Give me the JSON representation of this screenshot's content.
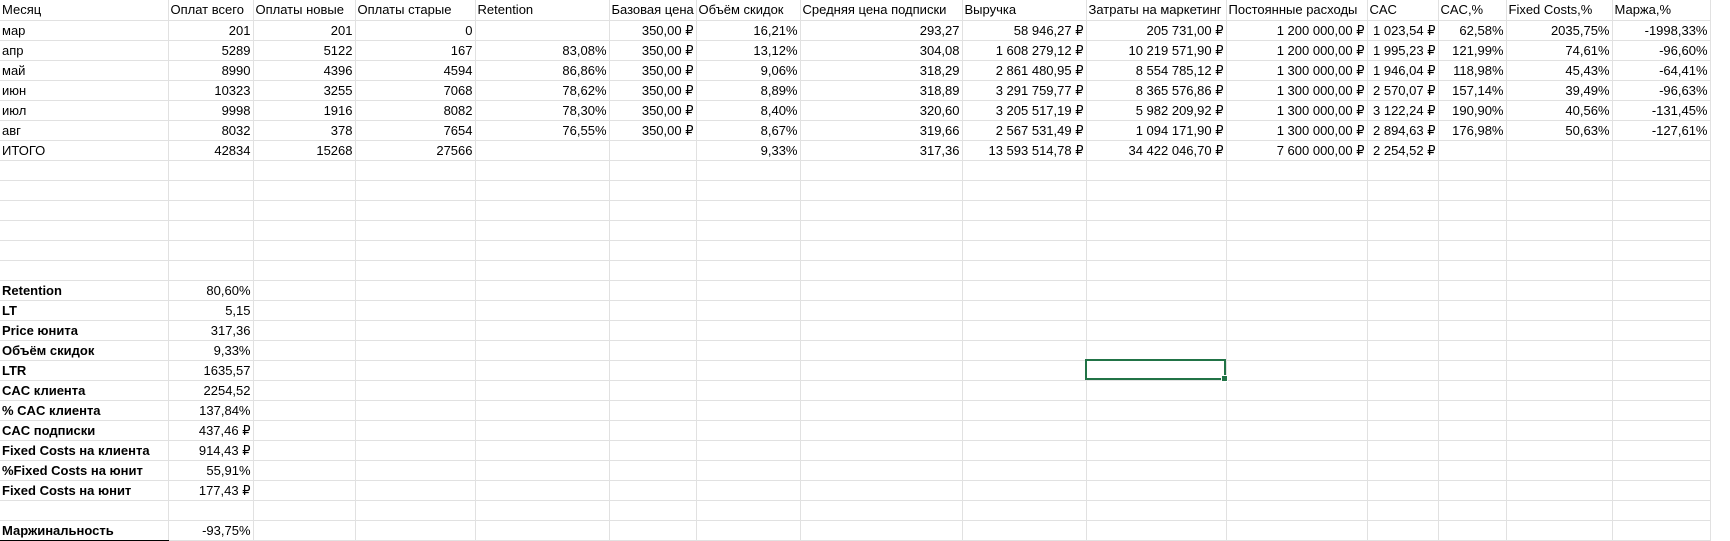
{
  "sheet": {
    "headers": [
      "Месяц",
      "Оплат всего",
      "Оплаты новые",
      "Оплаты  старые",
      "Retention",
      "Базовая цена",
      "Объём скидок",
      "Средняя цена подписки",
      "Выручка",
      "Затраты на маркетинг",
      "Постоянные расходы",
      "CAC",
      "CAC,%",
      "Fixed Costs,%",
      "Маржа,%"
    ],
    "rows": [
      [
        "мар",
        "201",
        "201",
        "0",
        "",
        "350,00 ₽",
        "16,21%",
        "293,27",
        "58 946,27 ₽",
        "205 731,00 ₽",
        "1 200 000,00 ₽",
        "1 023,54 ₽",
        "62,58%",
        "2035,75%",
        "-1998,33%"
      ],
      [
        "апр",
        "5289",
        "5122",
        "167",
        "83,08%",
        "350,00 ₽",
        "13,12%",
        "304,08",
        "1 608 279,12 ₽",
        "10 219 571,90 ₽",
        "1 200 000,00 ₽",
        "1 995,23 ₽",
        "121,99%",
        "74,61%",
        "-96,60%"
      ],
      [
        "май",
        "8990",
        "4396",
        "4594",
        "86,86%",
        "350,00 ₽",
        "9,06%",
        "318,29",
        "2 861 480,95 ₽",
        "8 554 785,12 ₽",
        "1 300 000,00 ₽",
        "1 946,04 ₽",
        "118,98%",
        "45,43%",
        "-64,41%"
      ],
      [
        "июн",
        "10323",
        "3255",
        "7068",
        "78,62%",
        "350,00 ₽",
        "8,89%",
        "318,89",
        "3 291 759,77 ₽",
        "8 365 576,86 ₽",
        "1 300 000,00 ₽",
        "2 570,07 ₽",
        "157,14%",
        "39,49%",
        "-96,63%"
      ],
      [
        "июл",
        "9998",
        "1916",
        "8082",
        "78,30%",
        "350,00 ₽",
        "8,40%",
        "320,60",
        "3 205 517,19 ₽",
        "5 982 209,92 ₽",
        "1 300 000,00 ₽",
        "3 122,24 ₽",
        "190,90%",
        "40,56%",
        "-131,45%"
      ],
      [
        "авг",
        "8032",
        "378",
        "7654",
        "76,55%",
        "350,00 ₽",
        "8,67%",
        "319,66",
        "2 567 531,49 ₽",
        "1 094 171,90 ₽",
        "1 300 000,00 ₽",
        "2 894,63 ₽",
        "176,98%",
        "50,63%",
        "-127,61%"
      ],
      [
        "ИТОГО",
        "42834",
        "15268",
        "27566",
        "",
        "",
        "9,33%",
        "317,36",
        "13 593 514,78 ₽",
        "34 422 046,70 ₽",
        "7 600 000,00 ₽",
        "2 254,52 ₽",
        "",
        "",
        ""
      ]
    ],
    "summary": [
      {
        "label": "Retention",
        "value": "80,60%"
      },
      {
        "label": "LT",
        "value": "5,15"
      },
      {
        "label": "Price юнита",
        "value": "317,36"
      },
      {
        "label": "Объём скидок",
        "value": "9,33%"
      },
      {
        "label": "LTR",
        "value": "1635,57"
      },
      {
        "label": "CAC клиента",
        "value": "2254,52"
      },
      {
        "label": "% CAC клиента",
        "value": "137,84%"
      },
      {
        "label": "CAC подписки",
        "value": "437,46 ₽"
      },
      {
        "label": "Fixed Costs на клиента",
        "value": "914,43 ₽"
      },
      {
        "label": "%Fixed Costs на юнит",
        "value": "55,91%"
      },
      {
        "label": "Fixed Costs на юнит",
        "value": "177,43 ₽"
      }
    ],
    "margin": {
      "label": "Маржинальность",
      "value": "-93,75%"
    }
  },
  "colors": {
    "grid": "#e1e1e1",
    "selection": "#217346"
  }
}
